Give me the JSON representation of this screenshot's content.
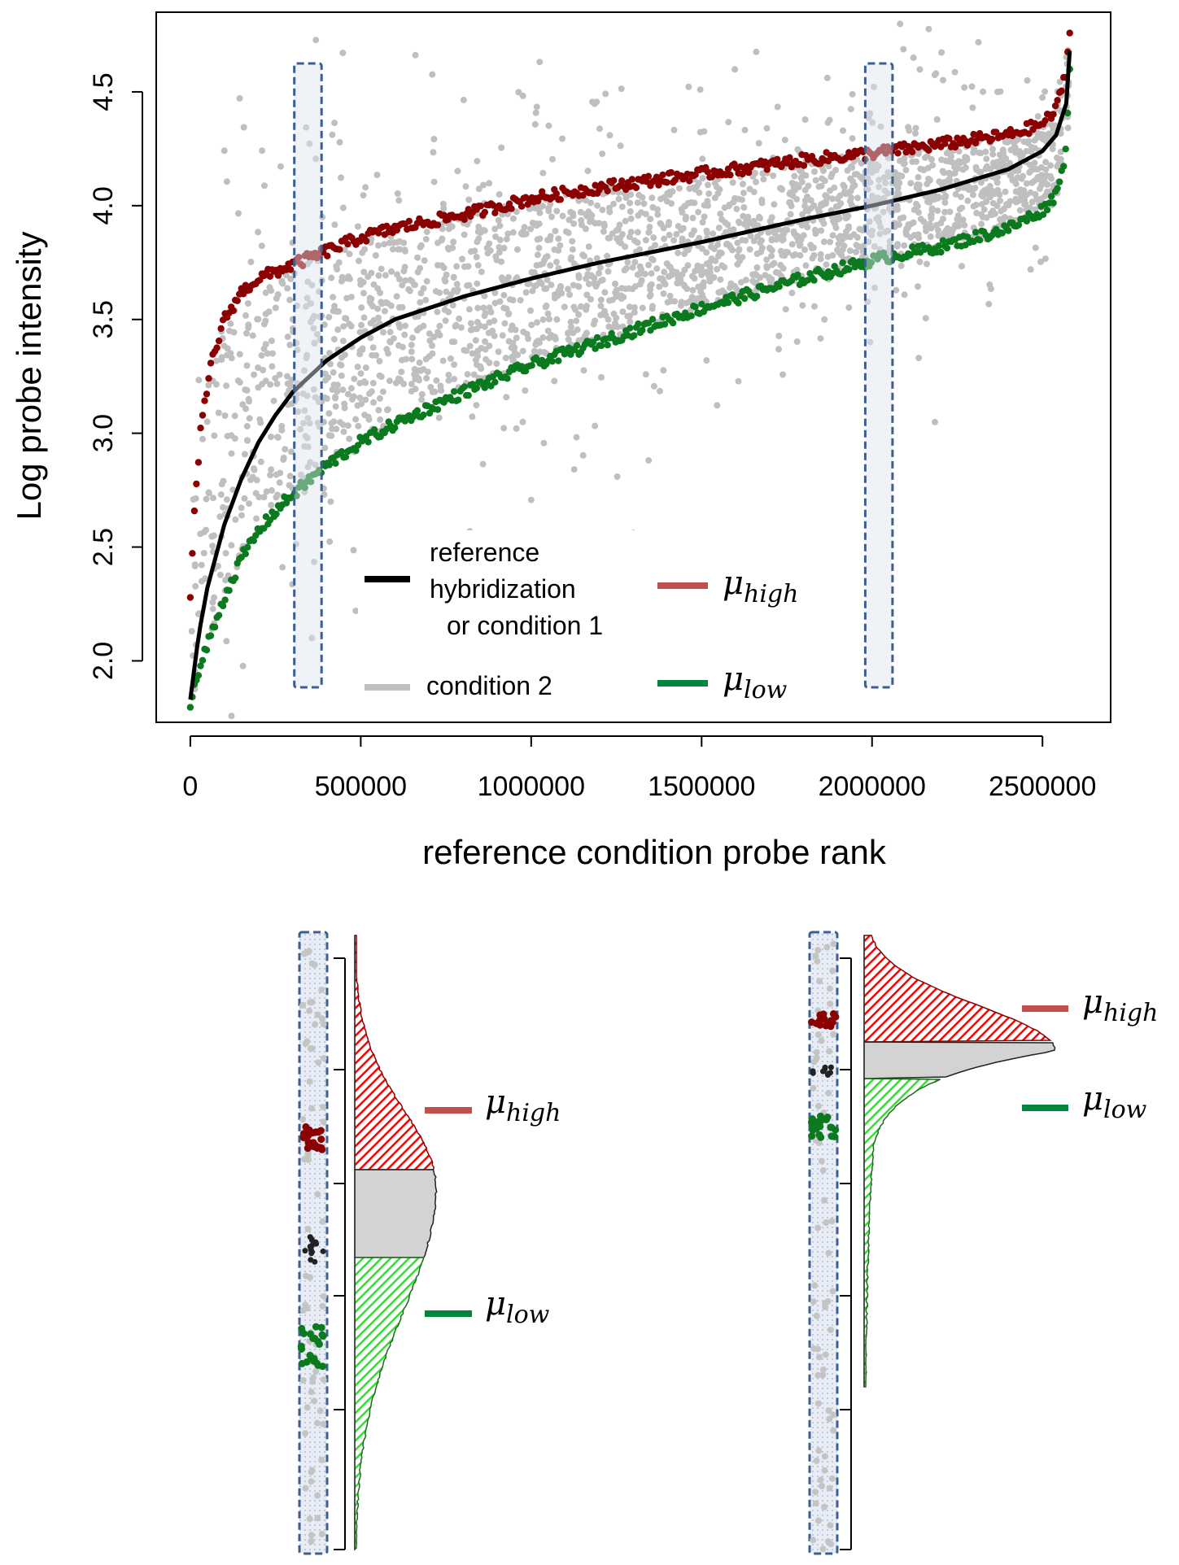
{
  "colors": {
    "reference": "#000000",
    "condition2": "#bfbfbf",
    "mu_high": "#8b0000",
    "mu_low": "#0b7a1e",
    "mu_high_legend": "#c0504d",
    "mu_low_legend": "#00863c",
    "window_fill": "#dce4f0",
    "window_stroke": "#3d5f8f",
    "hist_red": "#ff0000",
    "hist_gray": "#d3d3d3",
    "hist_green": "#33dd33"
  },
  "chart_data": [
    {
      "id": "main-scatter",
      "type": "scatter",
      "xlabel": "reference condition probe rank",
      "ylabel": "Log probe intensity",
      "xlim": [
        -100000,
        2700000
      ],
      "ylim": [
        1.73,
        4.85
      ],
      "xticks": [
        0,
        500000,
        1000000,
        1500000,
        2000000,
        2500000
      ],
      "xtick_labels": [
        "0",
        "500000",
        "1000000",
        "1500000",
        "2000000",
        "2500000"
      ],
      "yticks": [
        2.0,
        2.5,
        3.0,
        3.5,
        4.0,
        4.5
      ],
      "ytick_labels": [
        "2.0",
        "2.5",
        "3.0",
        "3.5",
        "4.0",
        "4.5"
      ],
      "grid": false,
      "legend_position": "bottom-center",
      "series": [
        {
          "name": "reference hybridization or condition 1",
          "kind": "line",
          "x": [
            0,
            25000,
            50000,
            100000,
            150000,
            200000,
            250000,
            300000,
            400000,
            500000,
            600000,
            800000,
            1000000,
            1200000,
            1500000,
            1800000,
            2000000,
            2200000,
            2400000,
            2500000,
            2540000,
            2570000,
            2580000
          ],
          "y": [
            1.83,
            2.12,
            2.32,
            2.6,
            2.8,
            2.96,
            3.08,
            3.18,
            3.32,
            3.42,
            3.5,
            3.6,
            3.68,
            3.75,
            3.84,
            3.94,
            4.0,
            4.07,
            4.16,
            4.24,
            4.31,
            4.45,
            4.68
          ]
        },
        {
          "name": "μhigh",
          "kind": "points-band",
          "x": [
            0,
            10000,
            30000,
            60000,
            100000,
            150000,
            200000,
            300000,
            400000,
            500000,
            600000,
            800000,
            1000000,
            1200000,
            1500000,
            1800000,
            2000000,
            2200000,
            2400000,
            2500000,
            2540000,
            2570000,
            2580000
          ],
          "y": [
            2.3,
            2.6,
            3.0,
            3.3,
            3.5,
            3.62,
            3.68,
            3.74,
            3.8,
            3.86,
            3.9,
            3.96,
            4.03,
            4.08,
            4.14,
            4.2,
            4.23,
            4.27,
            4.31,
            4.36,
            4.42,
            4.6,
            4.76
          ]
        },
        {
          "name": "μlow",
          "kind": "points-band",
          "x": [
            0,
            25000,
            50000,
            100000,
            150000,
            200000,
            250000,
            300000,
            400000,
            500000,
            600000,
            800000,
            1000000,
            1200000,
            1500000,
            1800000,
            2000000,
            2200000,
            2400000,
            2500000,
            2540000,
            2570000,
            2580000
          ],
          "y": [
            1.82,
            1.95,
            2.07,
            2.28,
            2.45,
            2.57,
            2.66,
            2.73,
            2.86,
            2.96,
            3.04,
            3.18,
            3.3,
            3.4,
            3.55,
            3.68,
            3.76,
            3.82,
            3.9,
            3.98,
            4.05,
            4.25,
            4.6
          ]
        },
        {
          "name": "condition 2",
          "kind": "scatter",
          "note_density": "dense cloud around reference line"
        }
      ],
      "windows_x": [
        [
          305000,
          385000
        ],
        [
          1980000,
          2060000
        ]
      ],
      "legend": {
        "reference_label_lines": [
          "reference",
          "hybridization",
          "or condition 1"
        ],
        "condition2_label": "condition 2",
        "mu_high_base": "μ",
        "mu_high_sub": "high",
        "mu_low_base": "μ",
        "mu_low_sub": "low"
      }
    },
    {
      "id": "histogram-left",
      "type": "area",
      "orientation": "horizontal",
      "window": "left",
      "cutoffs": [
        "μhigh",
        "μlow"
      ],
      "labels": {
        "mu_high_base": "μ",
        "mu_high_sub": "high",
        "mu_low_base": "μ",
        "mu_low_sub": "low"
      }
    },
    {
      "id": "histogram-right",
      "type": "area",
      "orientation": "horizontal",
      "window": "right",
      "cutoffs": [
        "μhigh",
        "μlow"
      ],
      "labels": {
        "mu_high_base": "μ",
        "mu_high_sub": "high",
        "mu_low_base": "μ",
        "mu_low_sub": "low"
      }
    }
  ]
}
